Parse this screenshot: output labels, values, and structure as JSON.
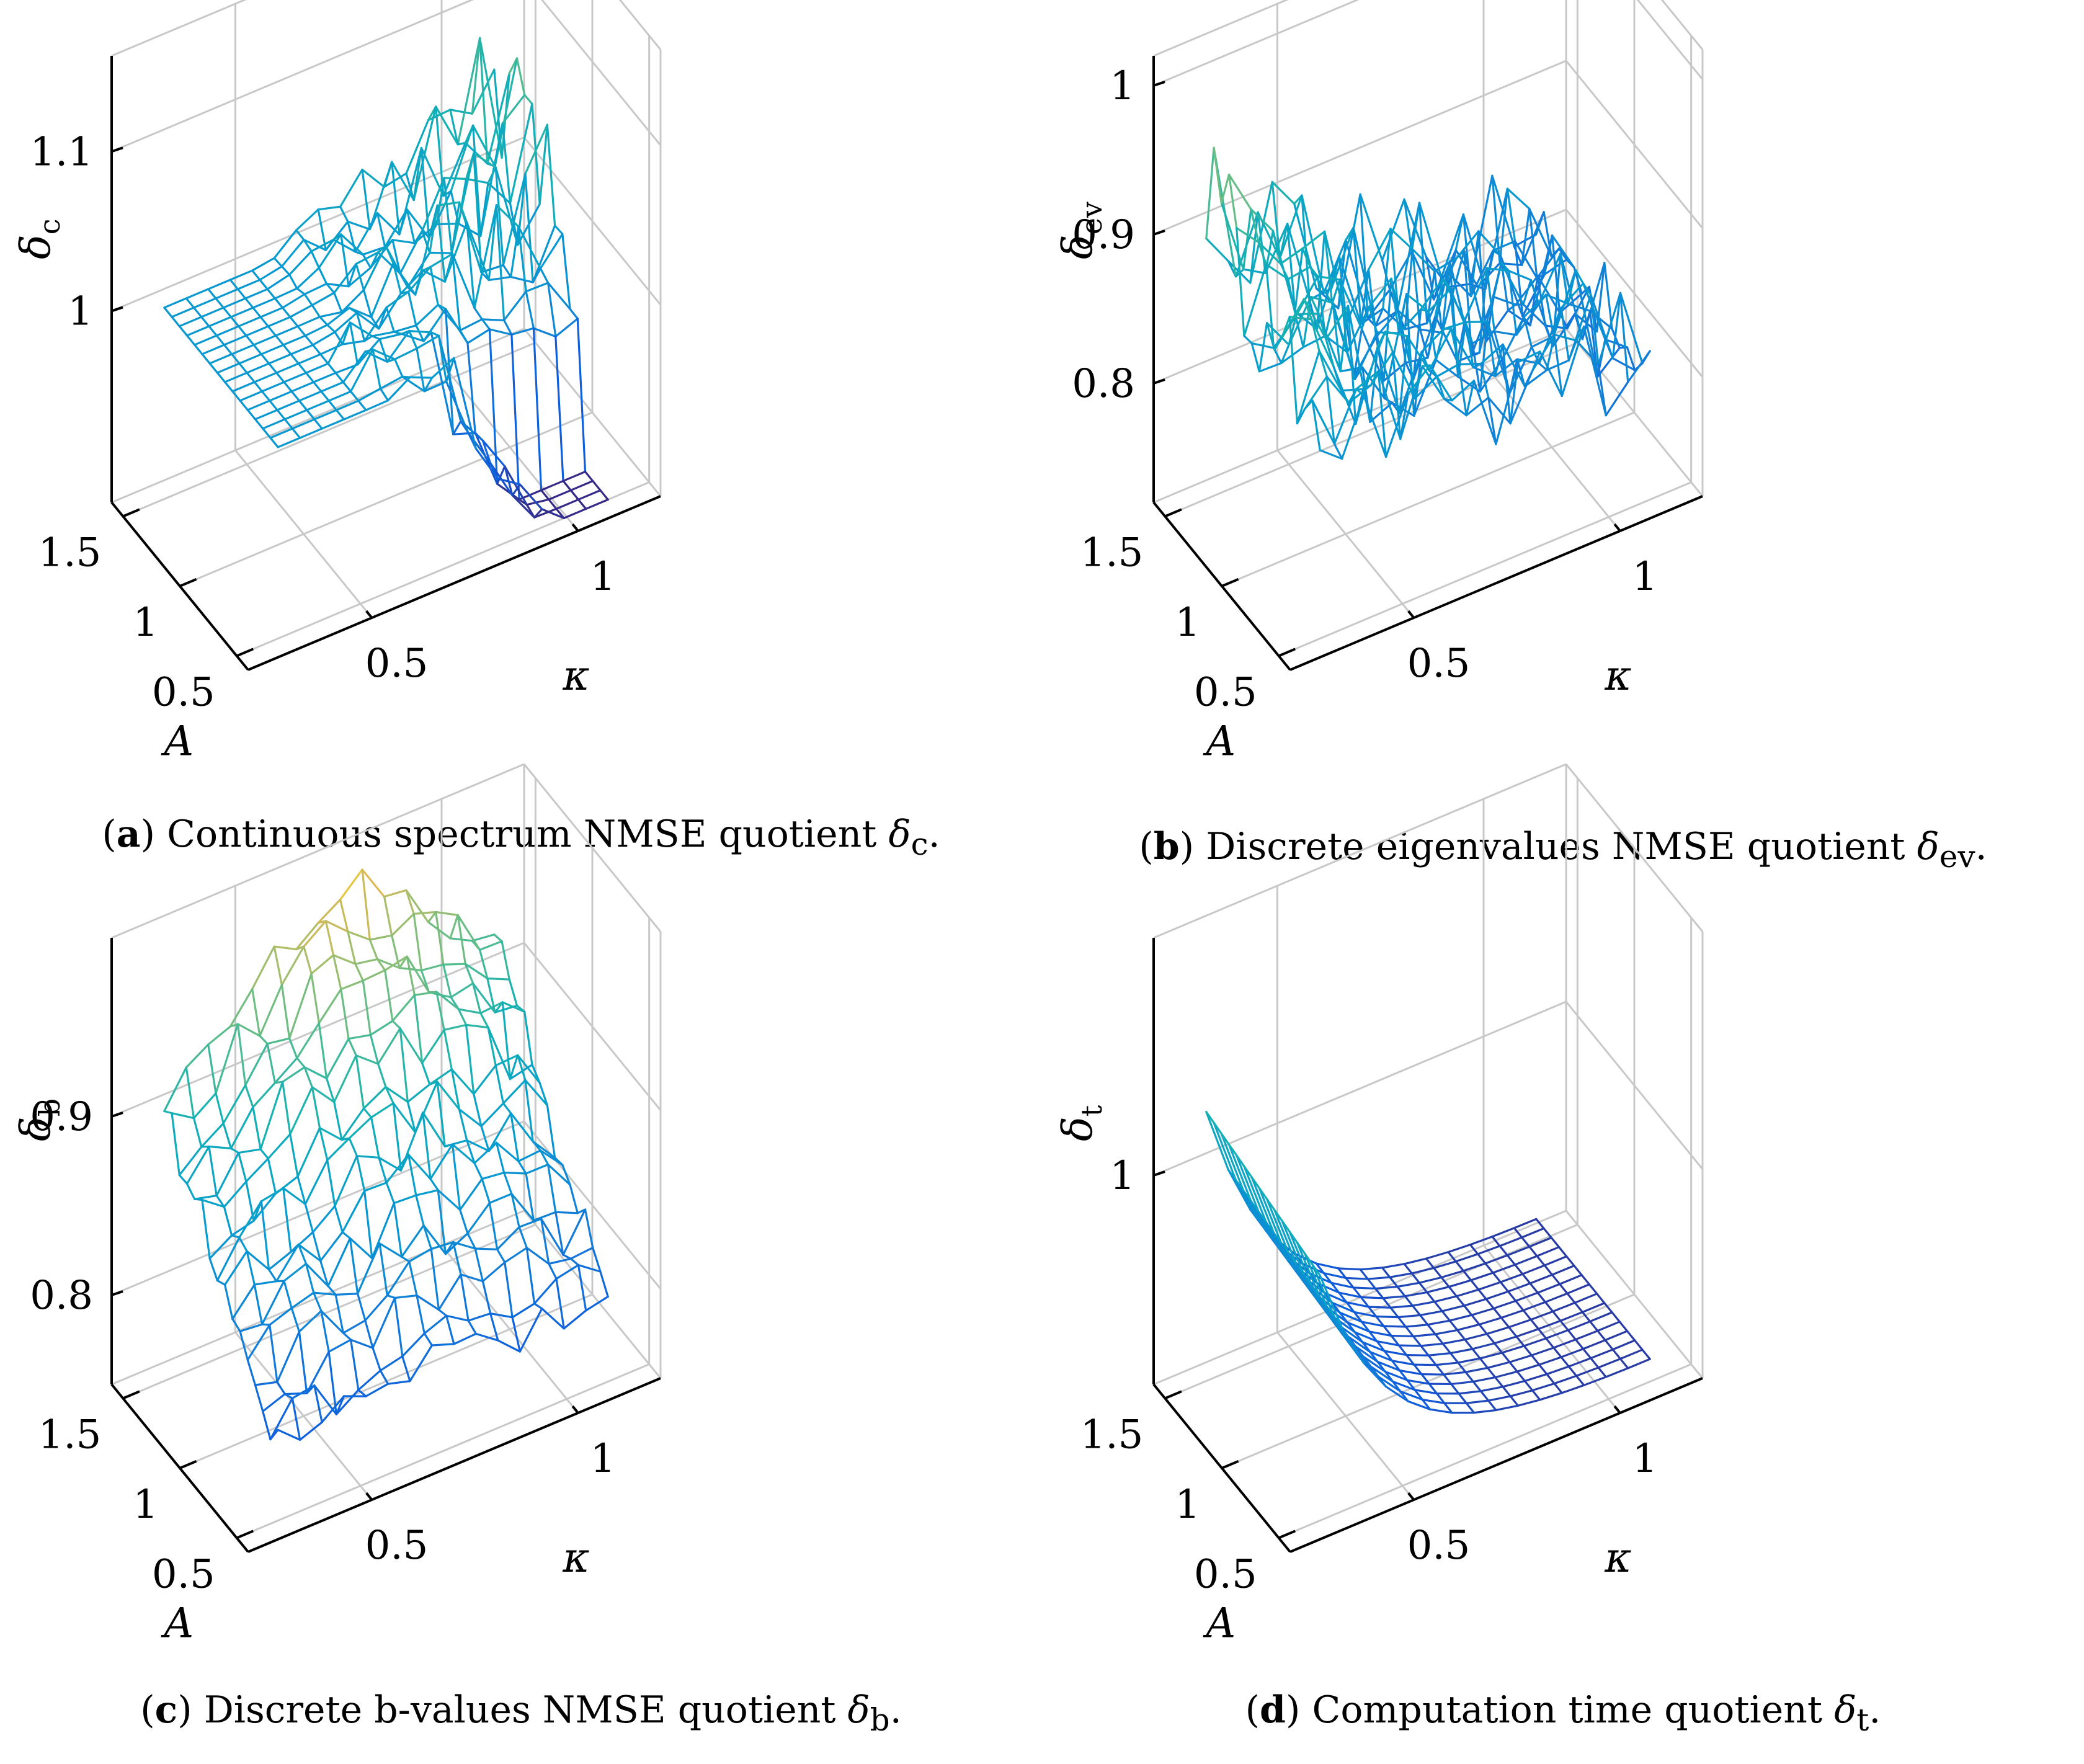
{
  "figure": {
    "panels": [
      {
        "id": "a",
        "caption_tag": "a",
        "caption_text": "Continuous spectrum NMSE quotient",
        "caption_symbol": "δ",
        "caption_sub": "c",
        "chart_data": {
          "type": "surface",
          "title": "Continuous spectrum NMSE quotient δc",
          "xlabel": "κ",
          "ylabel": "A",
          "zlabel": "δ",
          "zlabel_sub": "c",
          "x_range": [
            0.2,
            1.2
          ],
          "y_range": [
            0.4,
            1.6
          ],
          "z_range": [
            0.88,
            1.16
          ],
          "x_ticks": [
            0.5,
            1
          ],
          "x_tick_labels": [
            "0.5",
            "1"
          ],
          "y_ticks": [
            0.5,
            1,
            1.5
          ],
          "y_tick_labels": [
            "0.5",
            "1",
            "1.5"
          ],
          "z_ticks": [
            1,
            1.1
          ],
          "z_tick_labels": [
            "1",
            "1.1"
          ],
          "grid": true,
          "colormap": "parula",
          "surface": "flat-then-peaks"
        }
      },
      {
        "id": "b",
        "caption_tag": "b",
        "caption_text": "Discrete eigenvalues NMSE quotient",
        "caption_symbol": "δ",
        "caption_sub": "ev",
        "chart_data": {
          "type": "surface",
          "title": "Discrete eigenvalues NMSE quotient δev",
          "xlabel": "κ",
          "ylabel": "A",
          "zlabel": "δ",
          "zlabel_sub": "ev",
          "x_range": [
            0.2,
            1.2
          ],
          "y_range": [
            0.4,
            1.6
          ],
          "z_range": [
            0.72,
            1.02
          ],
          "x_ticks": [
            0.5,
            1
          ],
          "x_tick_labels": [
            "0.5",
            "1"
          ],
          "y_ticks": [
            0.5,
            1,
            1.5
          ],
          "y_tick_labels": [
            "0.5",
            "1",
            "1.5"
          ],
          "z_ticks": [
            0.8,
            0.9,
            1
          ],
          "z_tick_labels": [
            "0.8",
            "0.9",
            "1"
          ],
          "grid": true,
          "colormap": "parula",
          "surface": "noisy"
        }
      },
      {
        "id": "c",
        "caption_tag": "c",
        "caption_text": "Discrete b-values NMSE quotient",
        "caption_symbol": "δ",
        "caption_sub": "b",
        "chart_data": {
          "type": "surface",
          "title": "Discrete b-values NMSE quotient δb",
          "xlabel": "κ",
          "ylabel": "A",
          "zlabel": "δ",
          "zlabel_sub": "b",
          "x_range": [
            0.2,
            1.2
          ],
          "y_range": [
            0.4,
            1.6
          ],
          "z_range": [
            0.75,
            1.0
          ],
          "x_ticks": [
            0.5,
            1
          ],
          "x_tick_labels": [
            "0.5",
            "1"
          ],
          "y_ticks": [
            0.5,
            1,
            1.5
          ],
          "y_tick_labels": [
            "0.5",
            "1",
            "1.5"
          ],
          "z_ticks": [
            0.8,
            0.9
          ],
          "z_tick_labels": [
            "0.8",
            "0.9"
          ],
          "grid": true,
          "colormap": "parula",
          "surface": "rough-hill"
        }
      },
      {
        "id": "d",
        "caption_tag": "d",
        "caption_text": "Computation time quotient",
        "caption_symbol": "δ",
        "caption_sub": "t",
        "chart_data": {
          "type": "surface",
          "title": "Computation time quotient δt",
          "xlabel": "κ",
          "ylabel": "A",
          "zlabel": "δ",
          "zlabel_sub": "t",
          "x_range": [
            0.2,
            1.2
          ],
          "y_range": [
            0.4,
            1.6
          ],
          "z_range": [
            0.78,
            1.25
          ],
          "x_ticks": [
            0.5,
            1
          ],
          "x_tick_labels": [
            "0.5",
            "1"
          ],
          "y_ticks": [
            0.5,
            1,
            1.5
          ],
          "y_tick_labels": [
            "0.5",
            "1",
            "1.5"
          ],
          "z_ticks": [
            1
          ],
          "z_tick_labels": [
            "1"
          ],
          "grid": true,
          "colormap": "parula",
          "surface": "decay-in-kappa"
        }
      }
    ]
  }
}
